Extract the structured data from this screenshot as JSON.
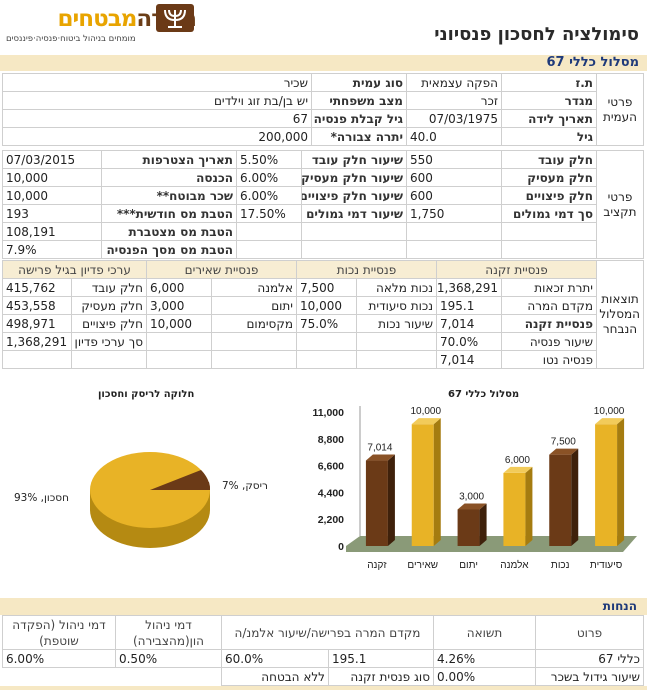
{
  "header": {
    "logo_text_a": "מנורה",
    "logo_text_b": "מבטחים",
    "logo_sub": "מומחים בניהול ביטוח·פנסיה·פיננסים",
    "title": "סימולציה לחסכון פנסיוני"
  },
  "track_title": "מסלול כללי 67",
  "personal": {
    "section": "פרטי העמית",
    "rows": [
      {
        "l1": "ת.ז",
        "v1": "הפקה עצמאית",
        "l2": "סוג עמית",
        "v2": "שכיר"
      },
      {
        "l1": "מגדר",
        "v1": "זכר",
        "l2": "מצב משפחתי",
        "v2": "יש בן/בת זוג וילדים"
      },
      {
        "l1": "תאריך לידה",
        "v1": "07/03/1975",
        "l2": "גיל קבלת פנסיה",
        "v2": "67"
      },
      {
        "l1": "גיל",
        "v1": "40.0",
        "l2": "יתרה צבורה*",
        "v2": "200,000"
      }
    ]
  },
  "savings": {
    "section": "פרטי תקציב",
    "rows": [
      {
        "l1": "חלק עובד",
        "v1": "550",
        "l2": "שיעור חלק עובד",
        "v2": "5.50%",
        "l3": "תאריך הצטרפות",
        "v3": "07/03/2015"
      },
      {
        "l1": "חלק מעסיק",
        "v1": "600",
        "l2": "שיעור חלק מעסיק",
        "v2": "6.00%",
        "l3": "הכנסה",
        "v3": "10,000"
      },
      {
        "l1": "חלק פיצויים",
        "v1": "600",
        "l2": "שיעור חלק פיצויים",
        "v2": "6.00%",
        "l3": "שכר מבוטח**",
        "v3": "10,000"
      },
      {
        "l1": "סך דמי גמולים",
        "v1": "1,750",
        "l2": "שיעור דמי גמולים",
        "v2": "17.50%",
        "l3": "הטבת מס חודשית***",
        "v3": "193"
      },
      {
        "l1": "",
        "v1": "",
        "l2": "",
        "v2": "",
        "l3": "הטבת מס מצטברת",
        "v3": "108,191"
      },
      {
        "l1": "",
        "v1": "",
        "l2": "",
        "v2": "",
        "l3": "הטבת מס מסך הפנסיה",
        "v3": "7.9%"
      }
    ]
  },
  "results": {
    "section": "תוצאות המסלול הנבחר",
    "heads": [
      "פנסיית זקנה",
      "פנסיית נכות",
      "פנסיית שאירים",
      "ערכי פדיון בגיל פרישה"
    ],
    "rows": [
      {
        "a": "יתרת זכאות",
        "b": "1,368,291",
        "c": "נכות מלאה",
        "d": "7,500",
        "e": "אלמנה",
        "f": "6,000",
        "g": "חלק עובד",
        "h": "415,762"
      },
      {
        "a": "מקדם המרה",
        "b": "195.1",
        "c": "נכות סיעודית",
        "d": "10,000",
        "e": "יתום",
        "f": "3,000",
        "g": "חלק מעסיק",
        "h": "453,558"
      },
      {
        "a": "פנסיית זקנה",
        "b": "7,014",
        "c": "שיעור נכות",
        "d": "75.0%",
        "e": "מקסימום",
        "f": "10,000",
        "g": "חלק פיצויים",
        "h": "498,971"
      },
      {
        "a": "שיעור פנסיה",
        "b": "70.0%",
        "c": "",
        "d": "",
        "e": "",
        "f": "",
        "g": "סך ערכי פדיון",
        "h": "1,368,291"
      },
      {
        "a": "פנסיה נטו",
        "b": "7,014",
        "c": "",
        "d": "",
        "e": "",
        "f": "",
        "g": "",
        "h": ""
      }
    ]
  },
  "pie": {
    "title": "חלוקה לריסק וחסכון",
    "risk_label": "ריסק, 7%",
    "saving_label": "חסכון, 93%"
  },
  "chart_data": {
    "type": "bar",
    "title": "מסלול כללי 67",
    "categories": [
      "זקנה",
      "שאירים",
      "יתום",
      "אלמנה",
      "נכות",
      "סיעודית"
    ],
    "values": [
      7014,
      10000,
      3000,
      6000,
      7500,
      10000
    ],
    "value_labels": [
      "7,014",
      "10,000",
      "3,000",
      "6,000",
      "7,500",
      "10,000"
    ],
    "colors": [
      "#6b3a17",
      "#e8b326",
      "#6b3a17",
      "#e8b326",
      "#6b3a17",
      "#e8b326"
    ],
    "ylim": [
      0,
      11000
    ],
    "yticks": [
      "0",
      "2,200",
      "4,400",
      "6,600",
      "8,800",
      "11,000"
    ]
  },
  "discounts": {
    "title": "הנחות",
    "heads": [
      "פרוט",
      "תשואה",
      "מקדם המרה בפרישה/שיעור אלמנ/ה",
      "דמי ניהול הון(מהצבירה)",
      "דמי ניהול (הפקדה שוטפת)"
    ],
    "row1": {
      "a": "כללי 67",
      "b": "4.26%",
      "c": "195.1",
      "d": "60.0%",
      "e": "0.50%",
      "f": "6.00%"
    },
    "row2": {
      "a": "שיעור גידול בשכר",
      "b": "0.00%",
      "c": "סוג פנסית זקנה",
      "d": "ללא הבטחה"
    }
  },
  "colors": {
    "brown": "#6b3a17",
    "gold": "#e8b326",
    "band": "#f6e8c4"
  }
}
